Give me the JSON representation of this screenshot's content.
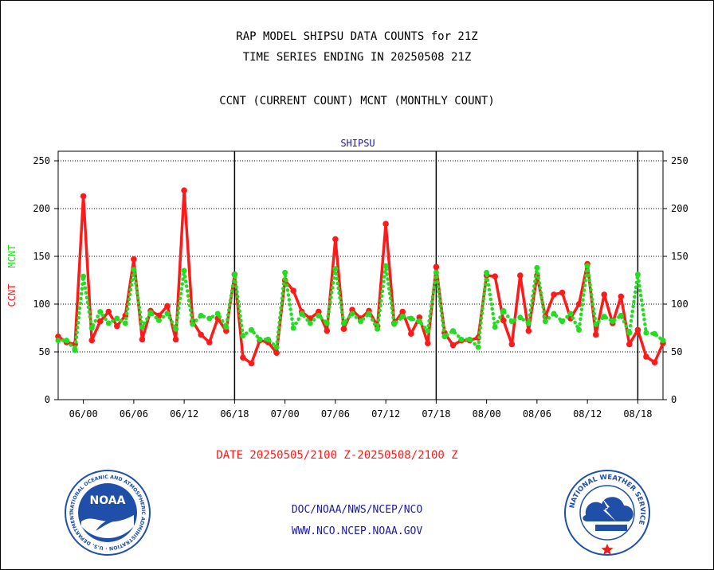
{
  "header": {
    "title_line1": "RAP MODEL SHIPSU DATA COUNTS for 21Z",
    "title_line2": "TIME SERIES ENDING IN 20250508 21Z",
    "subtitle": "CCNT (CURRENT COUNT) MCNT (MONTHLY COUNT)"
  },
  "footer": {
    "date_range": "DATE 20250505/2100 Z-20250508/2100 Z",
    "org_line": "DOC/NOAA/NWS/NCEP/NCO",
    "website": "WWW.NCO.NCEP.NOAA.GOV"
  },
  "logos": {
    "noaa_text": "NOAA",
    "noaa_ring_text": "NATIONAL OCEANIC AND ATMOSPHERIC ADMINISTRATION · U.S. DEPARTMENT OF COMMERCE",
    "nws_ring_text": "NATIONAL WEATHER SERVICE"
  },
  "colors": {
    "ccnt": "#ff1a1a",
    "mcnt": "#22dd22",
    "title_blue": "#1a1aa6",
    "noaa_blue": "#1f4fa8",
    "nws_blue": "#1f4fa8"
  },
  "chart_data": {
    "type": "line",
    "title": "SHIPSU",
    "ylabel_parts": [
      "CCNT",
      "MCNT"
    ],
    "ylim": [
      0,
      260
    ],
    "yticks": [
      0,
      50,
      100,
      150,
      200,
      250
    ],
    "xlim": [
      0,
      72
    ],
    "xtick_labels": [
      "06/00",
      "06/06",
      "06/12",
      "06/18",
      "07/00",
      "07/06",
      "07/12",
      "07/18",
      "08/00",
      "08/06",
      "08/12",
      "08/18"
    ],
    "xtick_positions": [
      3,
      9,
      15,
      21,
      27,
      33,
      39,
      45,
      51,
      57,
      63,
      69
    ],
    "day_boundaries": [
      21,
      45,
      69
    ],
    "grid": "horizontal",
    "series": [
      {
        "name": "CCNT",
        "style": "solid",
        "values": [
          66,
          60,
          58,
          213,
          62,
          82,
          92,
          77,
          88,
          147,
          63,
          93,
          88,
          98,
          63,
          219,
          82,
          68,
          60,
          85,
          72,
          131,
          44,
          38,
          62,
          60,
          49,
          125,
          114,
          92,
          85,
          92,
          72,
          168,
          74,
          94,
          85,
          93,
          77,
          184,
          80,
          92,
          69,
          86,
          59,
          139,
          70,
          57,
          62,
          62,
          65,
          130,
          129,
          83,
          58,
          130,
          72,
          130,
          87,
          110,
          112,
          85,
          100,
          142,
          68,
          110,
          80,
          108,
          58,
          73,
          45,
          39,
          59
        ]
      },
      {
        "name": "MCNT",
        "style": "dotted",
        "values": [
          62,
          62,
          52,
          129,
          75,
          92,
          80,
          85,
          80,
          136,
          76,
          91,
          83,
          90,
          74,
          135,
          79,
          88,
          85,
          90,
          76,
          131,
          67,
          73,
          63,
          63,
          55,
          133,
          75,
          90,
          80,
          88,
          80,
          137,
          80,
          90,
          82,
          90,
          74,
          140,
          79,
          87,
          85,
          82,
          72,
          133,
          66,
          72,
          63,
          63,
          55,
          133,
          76,
          93,
          82,
          86,
          80,
          138,
          82,
          90,
          82,
          90,
          73,
          140,
          79,
          87,
          82,
          88,
          70,
          131,
          70,
          69,
          62
        ]
      }
    ]
  }
}
